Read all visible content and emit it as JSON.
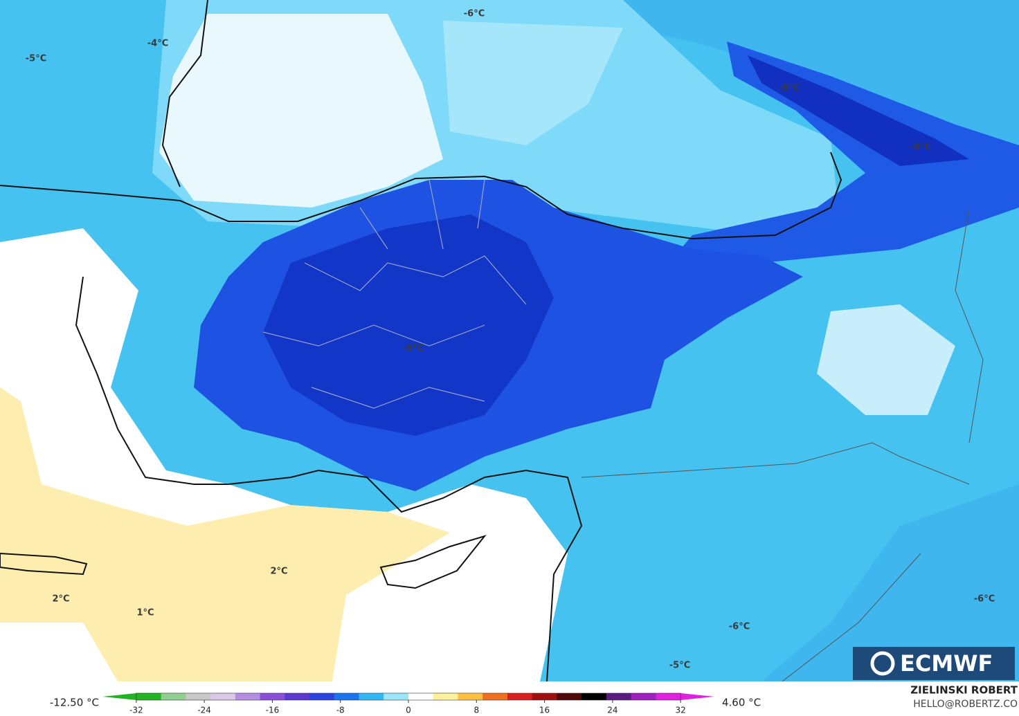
{
  "map": {
    "labels": [
      "-6°C",
      "-4°C",
      "-5°C",
      "-9°C",
      "-8°C",
      "-9°C",
      "2°C",
      "2°C",
      "1°C",
      "-6°C",
      "-6°C",
      "-5°C"
    ],
    "logo": "ECMWF",
    "author": "ZIELINSKI ROBERT",
    "email": "HELLO@ROBERTZ.CO"
  },
  "colorbar": {
    "min_label": "-12.50 °C",
    "max_label": "4.60 °C",
    "range": [
      -35,
      35
    ],
    "ticks": [
      -32,
      -24,
      -16,
      -8,
      0,
      8,
      16,
      24,
      32
    ],
    "colors": [
      "#22b322",
      "#8fd08f",
      "#c8c8c8",
      "#d9c8e8",
      "#b48ee0",
      "#8a4fd8",
      "#5a3ad0",
      "#2a44e0",
      "#1a74f0",
      "#30b8f5",
      "#9ae6fb",
      "#ffffff",
      "#fff0a0",
      "#ffc040",
      "#f07020",
      "#d82020",
      "#a01010",
      "#500808",
      "#000000",
      "#5a1a80",
      "#a020c0",
      "#e020e0"
    ]
  }
}
